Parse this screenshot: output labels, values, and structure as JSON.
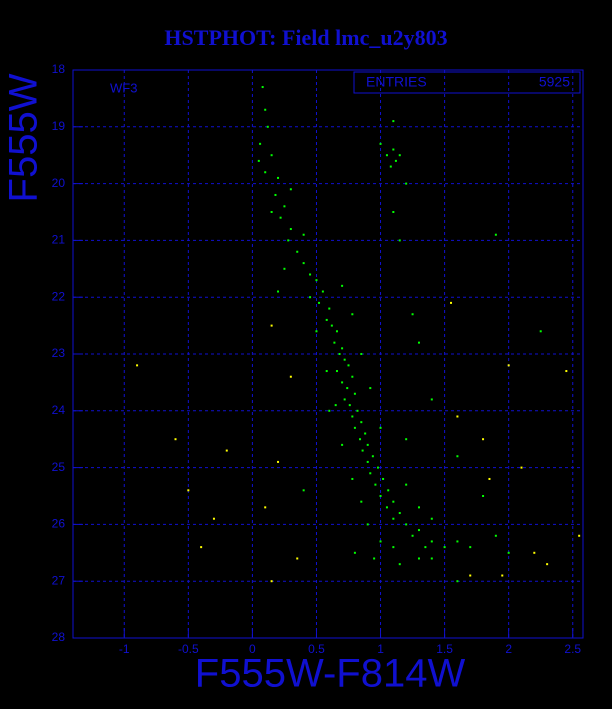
{
  "chart_data": {
    "type": "scatter",
    "title": "HSTPHOT: Field lmc_u2y803",
    "xlabel": "F555W-F814W",
    "ylabel": "F555W",
    "annotations": [
      "WF3"
    ],
    "stats": {
      "label": "ENTRIES",
      "value": 5925
    },
    "xlim": [
      -1.4,
      2.58
    ],
    "ylim": [
      28,
      18
    ],
    "xticks": [
      -1,
      -0.5,
      0,
      0.5,
      1,
      1.5,
      2,
      2.5
    ],
    "yticks": [
      18,
      19,
      20,
      21,
      22,
      23,
      24,
      25,
      26,
      27,
      28
    ],
    "grid": true,
    "series": [
      {
        "color": "#00ff00",
        "x": [
          0.08,
          0.1,
          0.12,
          0.06,
          0.15,
          0.1,
          0.2,
          0.18,
          0.25,
          0.22,
          0.3,
          0.28,
          0.35,
          0.4,
          0.45,
          0.5,
          0.55,
          0.52,
          0.6,
          0.58,
          0.62,
          0.66,
          0.64,
          0.7,
          0.68,
          0.72,
          0.75,
          0.66,
          0.78,
          0.7,
          0.74,
          0.8,
          0.72,
          0.76,
          0.82,
          0.78,
          0.85,
          0.8,
          0.88,
          0.84,
          0.9,
          0.86,
          0.94,
          0.9,
          0.98,
          0.92,
          1.02,
          0.96,
          1.06,
          1.0,
          1.1,
          1.05,
          1.15,
          1.1,
          1.2,
          1.3,
          1.25,
          1.4,
          1.5,
          1.35,
          1.6,
          1.7,
          0.9,
          1.0,
          1.1,
          0.85,
          0.78,
          1.2,
          1.3,
          1.4,
          0.7,
          1.0,
          0.65,
          0.92,
          0.58,
          0.85,
          0.5,
          0.78,
          0.45,
          0.7,
          0.25,
          0.4,
          0.15,
          0.3,
          0.05,
          1.05,
          1.1,
          1.12,
          1.08,
          1.15,
          1.0,
          1.2,
          1.1,
          1.15,
          1.1,
          1.25,
          1.3,
          1.4,
          1.2,
          0.6,
          2.0,
          1.8,
          1.9,
          0.8,
          1.9,
          2.25,
          1.6,
          0.4,
          0.2,
          1.3,
          1.6,
          1.4,
          0.95,
          1.15
        ],
        "values": [
          18.3,
          18.7,
          19.0,
          19.3,
          19.5,
          19.8,
          19.9,
          20.2,
          20.4,
          20.6,
          20.8,
          21.0,
          21.2,
          21.4,
          21.6,
          21.7,
          21.9,
          22.1,
          22.2,
          22.4,
          22.5,
          22.6,
          22.8,
          22.9,
          23.0,
          23.1,
          23.2,
          23.3,
          23.4,
          23.5,
          23.6,
          23.7,
          23.8,
          23.9,
          24.0,
          24.1,
          24.2,
          24.3,
          24.4,
          24.5,
          24.6,
          24.7,
          24.8,
          24.9,
          25.0,
          25.1,
          25.2,
          25.3,
          25.4,
          25.5,
          25.6,
          25.7,
          25.8,
          25.9,
          26.0,
          26.1,
          26.2,
          26.3,
          26.4,
          26.4,
          26.3,
          26.4,
          26.0,
          26.3,
          26.4,
          25.6,
          25.2,
          25.3,
          25.7,
          25.9,
          24.6,
          24.3,
          23.9,
          23.6,
          23.3,
          23.0,
          22.6,
          22.3,
          22.0,
          21.8,
          21.5,
          20.9,
          20.5,
          20.1,
          19.6,
          19.5,
          19.4,
          19.6,
          19.7,
          19.5,
          19.3,
          20.0,
          20.5,
          21.0,
          18.9,
          22.3,
          22.8,
          23.8,
          24.5,
          24.0,
          26.5,
          25.5,
          26.2,
          26.5,
          20.9,
          22.6,
          24.8,
          25.4,
          21.9,
          26.6,
          27.0,
          26.6,
          26.6,
          26.7
        ]
      },
      {
        "color": "#ffff00",
        "x": [
          -0.9,
          -0.6,
          -0.3,
          -0.5,
          -0.2,
          0.3,
          0.2,
          0.1,
          0.15,
          0.35,
          1.6,
          1.8,
          1.85,
          2.1,
          2.2,
          2.3,
          2.55,
          1.7,
          1.95,
          2.0,
          0.15,
          -0.4,
          1.55,
          2.45
        ],
        "values": [
          23.2,
          24.5,
          25.9,
          25.4,
          24.7,
          23.4,
          24.9,
          25.7,
          27.0,
          26.6,
          24.1,
          24.5,
          25.2,
          25.0,
          26.5,
          26.7,
          26.2,
          26.9,
          26.9,
          23.2,
          22.5,
          26.4,
          22.1,
          23.3
        ]
      }
    ]
  }
}
